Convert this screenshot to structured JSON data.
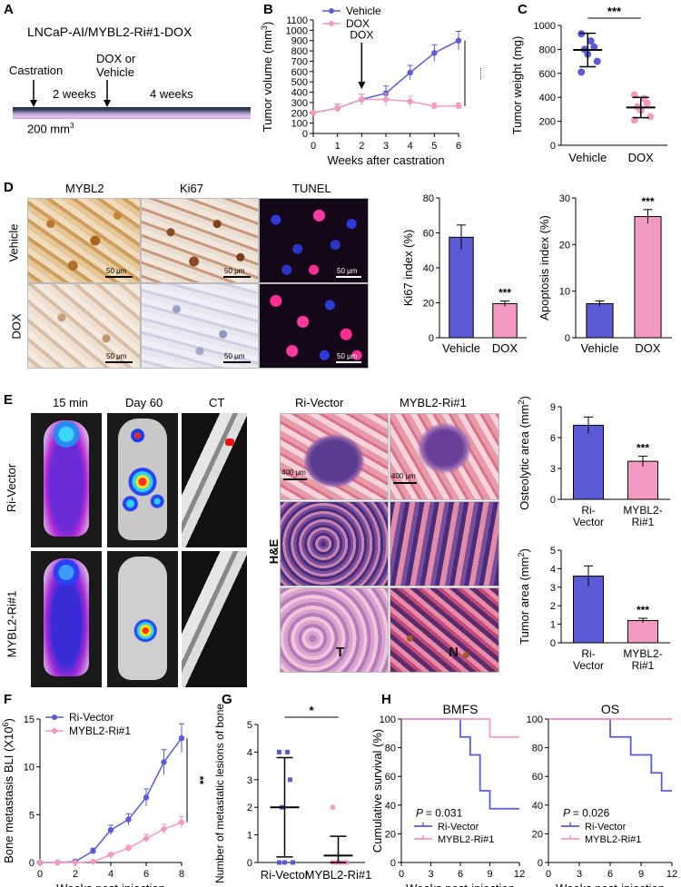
{
  "panels": {
    "A": "A",
    "B": "B",
    "C": "C",
    "D": "D",
    "E": "E",
    "F": "F",
    "G": "G",
    "H": "H"
  },
  "colors": {
    "vehicle": "#5b5bd6",
    "dox": "#f29ac2",
    "timeline_dark": "#1e2a3a",
    "timeline_light": "#d9b6e8"
  },
  "panelA": {
    "title": "LNCaP-AI/MYBL2-Ri#1-DOX",
    "castration": "Castration",
    "dox_or": "DOX or",
    "vehicle": "Vehicle",
    "two_weeks": "2 weeks",
    "four_weeks": "4 weeks",
    "size": "200 mm",
    "size_sup": "3"
  },
  "panelD": {
    "col_labels": [
      "MYBL2",
      "Ki67",
      "TUNEL"
    ],
    "row_labels": [
      "Vehicle",
      "DOX"
    ],
    "scale": "50 μm"
  },
  "panelE": {
    "col_labels": [
      "15 min",
      "Day 60",
      "CT"
    ],
    "row_labels": [
      "Ri-Vector",
      "MYBL2-Ri#1"
    ],
    "he_cols": [
      "Ri-Vector",
      "MYBL2-Ri#1"
    ],
    "he_label": "H&E",
    "he_scale": "400 μm",
    "he_T": "T",
    "he_N": "N"
  },
  "chart_data": [
    {
      "id": "B",
      "type": "line",
      "xlabel": "Weeks after castration",
      "ylabel": "Tumor volume (mm",
      "ylabel_sup": "3",
      "ylabel_tail": ")",
      "x": [
        0,
        1,
        2,
        3,
        4,
        5,
        6
      ],
      "xlim": [
        0,
        6
      ],
      "ylim": [
        0,
        1100
      ],
      "yticks": [
        0,
        100,
        200,
        300,
        400,
        500,
        600,
        700,
        800,
        900,
        1000,
        1100
      ],
      "series": [
        {
          "name": "Vehicle",
          "values": [
            200,
            245,
            330,
            390,
            590,
            780,
            900
          ],
          "err": [
            10,
            40,
            50,
            70,
            70,
            80,
            90
          ]
        },
        {
          "name": "DOX",
          "values": [
            200,
            245,
            330,
            330,
            310,
            265,
            265
          ],
          "err": [
            10,
            40,
            50,
            60,
            50,
            30,
            30
          ]
        }
      ],
      "annotation": "DOX",
      "sig": "***"
    },
    {
      "id": "C",
      "type": "scatter",
      "ylabel": "Tumor weight (mg)",
      "categories": [
        "Vehicle",
        "DOX"
      ],
      "ylim": [
        0,
        1000
      ],
      "yticks": [
        0,
        200,
        400,
        600,
        800,
        1000
      ],
      "points": [
        [
          930,
          870,
          820,
          800,
          760,
          700,
          610
        ],
        [
          420,
          390,
          350,
          320,
          290,
          240,
          210
        ]
      ],
      "mean": [
        795,
        315
      ],
      "sd": [
        140,
        85
      ],
      "sig": "***"
    },
    {
      "id": "D-Ki67",
      "type": "bar",
      "ylabel": "Ki67 index (%)",
      "categories": [
        "Vehicle",
        "DOX"
      ],
      "values": [
        57.5,
        19.5
      ],
      "err": [
        7,
        1.5
      ],
      "ylim": [
        0,
        80
      ],
      "yticks": [
        0,
        20,
        40,
        60,
        80
      ],
      "sig": "***"
    },
    {
      "id": "D-Apop",
      "type": "bar",
      "ylabel": "Apoptosis index (%)",
      "categories": [
        "Vehicle",
        "DOX"
      ],
      "values": [
        7.3,
        26
      ],
      "err": [
        0.6,
        1.5
      ],
      "ylim": [
        0,
        30
      ],
      "yticks": [
        0,
        10,
        20,
        30
      ],
      "sig": "***"
    },
    {
      "id": "E-Osteo",
      "type": "bar",
      "ylabel": "Osteolytic area (mm",
      "ylabel_sup": "2",
      "ylabel_tail": ")",
      "categories": [
        "Ri-\nVector",
        "MYBL2-\nRi#1"
      ],
      "values": [
        7.2,
        3.7
      ],
      "err": [
        0.8,
        0.5
      ],
      "ylim": [
        0,
        9
      ],
      "yticks": [
        0,
        3,
        6,
        9
      ],
      "sig": "***"
    },
    {
      "id": "E-Tumor",
      "type": "bar",
      "ylabel": "Tumor area (mm",
      "ylabel_sup": "2",
      "ylabel_tail": ")",
      "categories": [
        "Ri-\nVector",
        "MYBL2-\nRi#1"
      ],
      "values": [
        3.6,
        1.2
      ],
      "err": [
        0.55,
        0.12
      ],
      "ylim": [
        0,
        5
      ],
      "yticks": [
        0,
        1,
        2,
        3,
        4,
        5
      ],
      "sig": "***"
    },
    {
      "id": "F",
      "type": "line",
      "xlabel": "Weeks post-injection",
      "ylabel": "Bone metastasis BLI (X10",
      "ylabel_sup": "6",
      "ylabel_tail": ")",
      "x": [
        0,
        1,
        2,
        3,
        4,
        5,
        6,
        7,
        8
      ],
      "xticks": [
        0,
        2,
        4,
        6,
        8
      ],
      "ylim": [
        0,
        15
      ],
      "yticks": [
        0,
        5,
        10,
        15
      ],
      "series": [
        {
          "name": "Ri-Vector",
          "values": [
            0,
            0,
            0.1,
            1.2,
            3.4,
            4.5,
            6.8,
            10.5,
            13
          ],
          "err": [
            0,
            0,
            0.1,
            0.3,
            0.5,
            0.6,
            0.9,
            1.3,
            1.5
          ]
        },
        {
          "name": "MYBL2-Ri#1",
          "values": [
            0,
            0,
            0,
            0.1,
            0.8,
            1.5,
            2.5,
            3.5,
            4.2
          ],
          "err": [
            0,
            0,
            0,
            0.1,
            0.2,
            0.3,
            0.4,
            0.5,
            0.6
          ]
        }
      ],
      "sig": "**"
    },
    {
      "id": "G",
      "type": "scatter",
      "ylabel": "Number of metastatic lesions of bone",
      "categories": [
        "Ri-Vector",
        "MYBL2-Ri#1"
      ],
      "ylim": [
        0,
        5
      ],
      "yticks": [
        0,
        1,
        2,
        3,
        4,
        5
      ],
      "points": [
        [
          4,
          4,
          3,
          2,
          0,
          0,
          0
        ],
        [
          2,
          0,
          0,
          0,
          0,
          0,
          0
        ]
      ],
      "mean": [
        2,
        0.25
      ],
      "sd": [
        1.8,
        0.7
      ],
      "sig": "*"
    },
    {
      "id": "H-BMFS",
      "type": "line",
      "title": "BMFS",
      "xlabel": "Weeks post-injection",
      "ylabel": "Cumulative survival (%)",
      "xlim": [
        0,
        12
      ],
      "xticks": [
        0,
        3,
        6,
        9,
        12
      ],
      "ylim": [
        0,
        100
      ],
      "yticks": [
        0,
        20,
        40,
        60,
        80,
        100
      ],
      "series": [
        {
          "name": "Ri-Vector",
          "steps": [
            [
              0,
              100
            ],
            [
              6,
              100
            ],
            [
              6,
              87.5
            ],
            [
              7,
              87.5
            ],
            [
              7,
              75
            ],
            [
              8,
              75
            ],
            [
              8,
              50
            ],
            [
              9,
              50
            ],
            [
              9,
              37.5
            ],
            [
              12,
              37.5
            ]
          ]
        },
        {
          "name": "MYBL2-Ri#1",
          "steps": [
            [
              0,
              100
            ],
            [
              9,
              100
            ],
            [
              9,
              87.5
            ],
            [
              12,
              87.5
            ]
          ]
        }
      ],
      "pvalue": "= 0.031"
    },
    {
      "id": "H-OS",
      "type": "line",
      "title": "OS",
      "xlabel": "Weeks post-injection",
      "ylabel": "Cumulative survival (%)",
      "xlim": [
        0,
        12
      ],
      "xticks": [
        0,
        3,
        6,
        9,
        12
      ],
      "ylim": [
        0,
        100
      ],
      "yticks": [
        0,
        20,
        40,
        60,
        80,
        100
      ],
      "series": [
        {
          "name": "Ri-Vector",
          "steps": [
            [
              0,
              100
            ],
            [
              6,
              100
            ],
            [
              6,
              87.5
            ],
            [
              8,
              87.5
            ],
            [
              8,
              75
            ],
            [
              10,
              75
            ],
            [
              10,
              62.5
            ],
            [
              11,
              62.5
            ],
            [
              11,
              50
            ],
            [
              12,
              50
            ]
          ]
        },
        {
          "name": "MYBL2-Ri#1",
          "steps": [
            [
              0,
              100
            ],
            [
              12,
              100
            ]
          ]
        }
      ],
      "pvalue": "= 0.026"
    }
  ]
}
